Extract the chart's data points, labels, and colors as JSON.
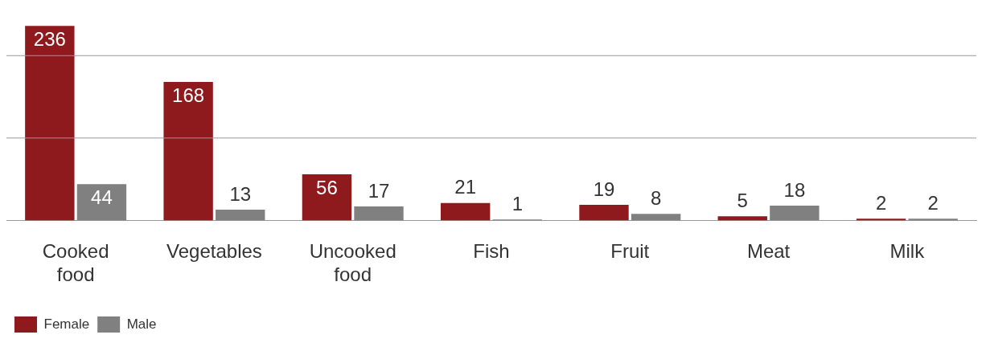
{
  "chart_data": {
    "type": "bar",
    "categories": [
      "Cooked food",
      "Vegetables",
      "Uncooked food",
      "Fish",
      "Fruit",
      "Meat",
      "Milk"
    ],
    "series": [
      {
        "name": "Female",
        "color": "#8f1a1e",
        "values": [
          236,
          168,
          56,
          21,
          19,
          5,
          2
        ]
      },
      {
        "name": "Male",
        "color": "#808080",
        "values": [
          44,
          13,
          17,
          1,
          8,
          18,
          2
        ]
      }
    ],
    "ref_lines": [
      {
        "axis": "y",
        "value": 100,
        "color": "#999999"
      },
      {
        "axis": "y",
        "value": 200,
        "color": "#999999"
      }
    ],
    "tick_labels": "x",
    "data_labels": true,
    "legend": "bottom left"
  }
}
